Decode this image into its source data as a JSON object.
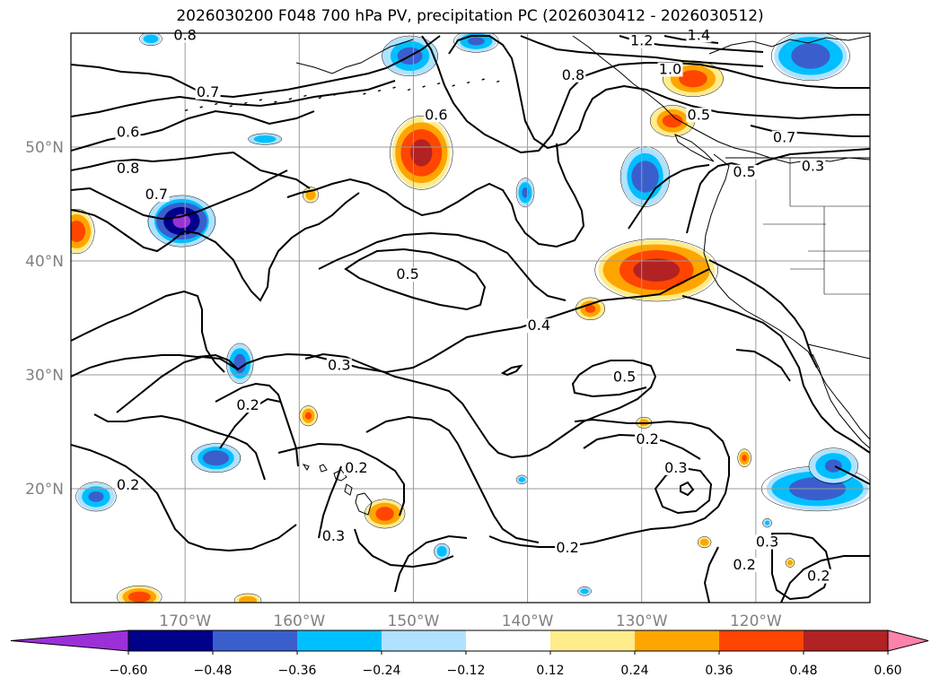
{
  "title": "2026030200 F048 700 hPa PV, precipitation PC (2026030412 - 2026030512)",
  "map": {
    "lon_range": [
      -180,
      -110
    ],
    "lat_range": [
      10,
      60
    ],
    "lon_ticks": [
      {
        "value": -170,
        "label": "170°W"
      },
      {
        "value": -160,
        "label": "160°W"
      },
      {
        "value": -150,
        "label": "150°W"
      },
      {
        "value": -140,
        "label": "140°W"
      },
      {
        "value": -130,
        "label": "130°W"
      },
      {
        "value": -120,
        "label": "120°W"
      }
    ],
    "lat_ticks": [
      {
        "value": 20,
        "label": "20°N"
      },
      {
        "value": 30,
        "label": "30°N"
      },
      {
        "value": 40,
        "label": "40°N"
      },
      {
        "value": 50,
        "label": "50°N"
      }
    ],
    "contour_labels": [
      {
        "text": "0.8",
        "lon": -170,
        "lat": 59.5
      },
      {
        "text": "0.7",
        "lon": -168,
        "lat": 54.5
      },
      {
        "text": "0.6",
        "lon": -175,
        "lat": 51
      },
      {
        "text": "0.8",
        "lon": -175,
        "lat": 47.8
      },
      {
        "text": "0.7",
        "lon": -172.5,
        "lat": 45.5
      },
      {
        "text": "0.6",
        "lon": -148,
        "lat": 52.5
      },
      {
        "text": "1.2",
        "lon": -130,
        "lat": 59
      },
      {
        "text": "1.4",
        "lon": -125,
        "lat": 59.5
      },
      {
        "text": "1.0",
        "lon": -127.5,
        "lat": 56.5
      },
      {
        "text": "0.8",
        "lon": -136,
        "lat": 56
      },
      {
        "text": "0.5",
        "lon": -125,
        "lat": 52.5
      },
      {
        "text": "0.7",
        "lon": -117.5,
        "lat": 50.5
      },
      {
        "text": "0.5",
        "lon": -121,
        "lat": 47.5
      },
      {
        "text": "0.3",
        "lon": -115,
        "lat": 48
      },
      {
        "text": "0.5",
        "lon": -150.5,
        "lat": 38.5
      },
      {
        "text": "0.4",
        "lon": -139,
        "lat": 34
      },
      {
        "text": "0.3",
        "lon": -156.5,
        "lat": 30.5
      },
      {
        "text": "0.5",
        "lon": -131.5,
        "lat": 29.5
      },
      {
        "text": "0.2",
        "lon": -164.5,
        "lat": 27
      },
      {
        "text": "0.2",
        "lon": -129.5,
        "lat": 24
      },
      {
        "text": "0.3",
        "lon": -127,
        "lat": 21.5
      },
      {
        "text": "0.2",
        "lon": -155,
        "lat": 21.5
      },
      {
        "text": "0.2",
        "lon": -175,
        "lat": 20
      },
      {
        "text": "0.3",
        "lon": -157,
        "lat": 15.5
      },
      {
        "text": "0.2",
        "lon": -136.5,
        "lat": 14.5
      },
      {
        "text": "0.3",
        "lon": -119,
        "lat": 15
      },
      {
        "text": "0.2",
        "lon": -121,
        "lat": 13
      },
      {
        "text": "0.2",
        "lon": -114.5,
        "lat": 12
      }
    ],
    "precip_blobs": [
      {
        "lon": -170.3,
        "lat": 43.5,
        "r_lon": 3.0,
        "r_lat": 2.3,
        "sign": "neg",
        "peak": 0.6
      },
      {
        "lon": -149.3,
        "lat": 49.5,
        "r_lon": 2.8,
        "r_lat": 3.3,
        "sign": "pos",
        "peak": 0.5
      },
      {
        "lon": -128.7,
        "lat": 39.2,
        "r_lon": 5.5,
        "r_lat": 2.8,
        "sign": "pos",
        "peak": 0.5
      },
      {
        "lon": -134.5,
        "lat": 35.8,
        "r_lon": 1.3,
        "r_lat": 1.0,
        "sign": "pos",
        "peak": 0.36
      },
      {
        "lon": -129.7,
        "lat": 47.4,
        "r_lon": 2.2,
        "r_lat": 2.7,
        "sign": "neg",
        "peak": 0.42
      },
      {
        "lon": -140.2,
        "lat": 46.0,
        "r_lon": 0.8,
        "r_lat": 1.3,
        "sign": "neg",
        "peak": 0.36
      },
      {
        "lon": -165.2,
        "lat": 31.0,
        "r_lon": 1.2,
        "r_lat": 1.8,
        "sign": "neg",
        "peak": 0.4
      },
      {
        "lon": -167.3,
        "lat": 22.7,
        "r_lon": 2.2,
        "r_lat": 1.3,
        "sign": "neg",
        "peak": 0.42
      },
      {
        "lon": -177.8,
        "lat": 19.3,
        "r_lon": 1.8,
        "r_lat": 1.3,
        "sign": "neg",
        "peak": 0.36
      },
      {
        "lon": -114.6,
        "lat": 20.0,
        "r_lon": 5.0,
        "r_lat": 2.0,
        "sign": "neg",
        "peak": 0.42
      },
      {
        "lon": -113.2,
        "lat": 22.0,
        "r_lon": 2.2,
        "r_lat": 1.6,
        "sign": "neg",
        "peak": 0.36
      },
      {
        "lon": -150.3,
        "lat": 58.0,
        "r_lon": 2.5,
        "r_lat": 1.8,
        "sign": "neg",
        "peak": 0.38
      },
      {
        "lon": -144.5,
        "lat": 59.3,
        "r_lon": 2.0,
        "r_lat": 1.0,
        "sign": "neg",
        "peak": 0.36
      },
      {
        "lon": -115.2,
        "lat": 58.0,
        "r_lon": 3.5,
        "r_lat": 2.2,
        "sign": "neg",
        "peak": 0.42
      },
      {
        "lon": -125.5,
        "lat": 56.0,
        "r_lon": 2.7,
        "r_lat": 1.6,
        "sign": "pos",
        "peak": 0.4
      },
      {
        "lon": -127.3,
        "lat": 52.3,
        "r_lon": 2.0,
        "r_lat": 1.4,
        "sign": "pos",
        "peak": 0.38
      },
      {
        "lon": -179.5,
        "lat": 42.6,
        "r_lon": 1.6,
        "r_lat": 2.0,
        "sign": "pos",
        "peak": 0.4
      },
      {
        "lon": -152.5,
        "lat": 17.8,
        "r_lon": 1.8,
        "r_lat": 1.3,
        "sign": "pos",
        "peak": 0.4
      },
      {
        "lon": -159.2,
        "lat": 26.4,
        "r_lon": 0.8,
        "r_lat": 0.9,
        "sign": "pos",
        "peak": 0.36
      },
      {
        "lon": -159.0,
        "lat": 45.8,
        "r_lon": 0.7,
        "r_lat": 0.7,
        "sign": "pos",
        "peak": 0.32
      },
      {
        "lon": -121.0,
        "lat": 22.7,
        "r_lon": 0.6,
        "r_lat": 0.8,
        "sign": "pos",
        "peak": 0.36
      },
      {
        "lon": -124.5,
        "lat": 15.3,
        "r_lon": 0.6,
        "r_lat": 0.5,
        "sign": "pos",
        "peak": 0.3
      },
      {
        "lon": -129.8,
        "lat": 25.8,
        "r_lon": 0.7,
        "r_lat": 0.5,
        "sign": "pos",
        "peak": 0.3
      },
      {
        "lon": -174.0,
        "lat": 10.5,
        "r_lon": 2.0,
        "r_lat": 1.0,
        "sign": "pos",
        "peak": 0.4
      },
      {
        "lon": -164.5,
        "lat": 10.2,
        "r_lon": 1.2,
        "r_lat": 0.6,
        "sign": "pos",
        "peak": 0.3
      },
      {
        "lon": -163.0,
        "lat": 50.7,
        "r_lon": 1.5,
        "r_lat": 0.5,
        "sign": "neg",
        "peak": 0.32
      },
      {
        "lon": -147.5,
        "lat": 14.5,
        "r_lon": 0.7,
        "r_lat": 0.7,
        "sign": "neg",
        "peak": 0.32
      },
      {
        "lon": -140.5,
        "lat": 20.8,
        "r_lon": 0.5,
        "r_lat": 0.4,
        "sign": "neg",
        "peak": 0.28
      },
      {
        "lon": -135.0,
        "lat": 11.0,
        "r_lon": 0.6,
        "r_lat": 0.4,
        "sign": "neg",
        "peak": 0.28
      },
      {
        "lon": -119.0,
        "lat": 17.0,
        "r_lon": 0.4,
        "r_lat": 0.4,
        "sign": "neg",
        "peak": 0.26
      },
      {
        "lon": -117.0,
        "lat": 13.5,
        "r_lon": 0.4,
        "r_lat": 0.4,
        "sign": "pos",
        "peak": 0.3
      },
      {
        "lon": -173.0,
        "lat": 59.5,
        "r_lon": 1.0,
        "r_lat": 0.6,
        "sign": "neg",
        "peak": 0.3
      }
    ]
  },
  "colorbar": {
    "colors": [
      "#9b30d9",
      "#00008b",
      "#3a5fcd",
      "#00bfff",
      "#b0e2ff",
      "#ffffff",
      "#ffec8b",
      "#ffa500",
      "#ff4500",
      "#b22222",
      "#ff82ab"
    ],
    "levels": [
      -0.6,
      -0.48,
      -0.36,
      -0.24,
      -0.12,
      0.12,
      0.24,
      0.36,
      0.48,
      0.6
    ],
    "labels": [
      "−0.60",
      "−0.48",
      "−0.36",
      "−0.24",
      "−0.12",
      "0.12",
      "0.24",
      "0.36",
      "0.48",
      "0.60"
    ]
  }
}
